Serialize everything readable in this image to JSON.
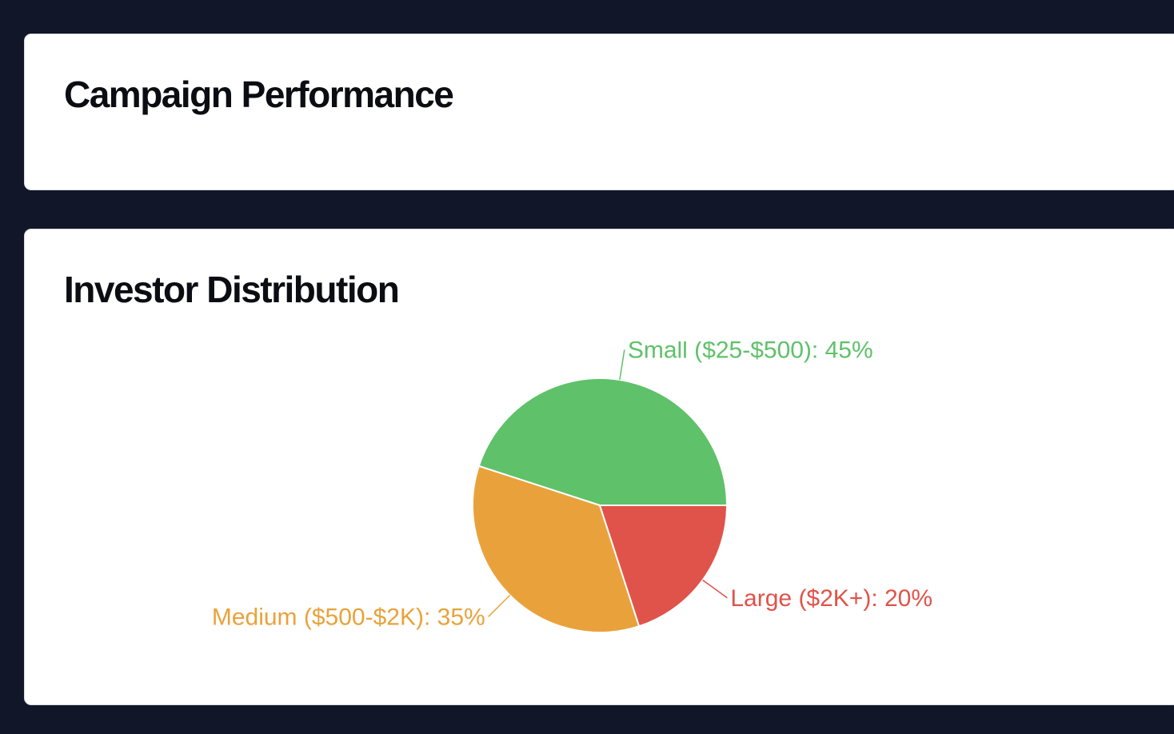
{
  "campaign_card": {
    "title": "Campaign Performance"
  },
  "distribution_card": {
    "title": "Investor Distribution"
  },
  "chart_data": {
    "type": "pie",
    "title": "Investor Distribution",
    "slices": [
      {
        "label": "Small ($25-$500)",
        "value": 45,
        "display": "Small ($25-$500): 45%",
        "color": "#5fc16a"
      },
      {
        "label": "Medium ($500-$2K)",
        "value": 35,
        "display": "Medium ($500-$2K): 35%",
        "color": "#e9a23b"
      },
      {
        "label": "Large ($2K+)",
        "value": 20,
        "display": "Large ($2K+): 20%",
        "color": "#e0534a"
      }
    ]
  }
}
